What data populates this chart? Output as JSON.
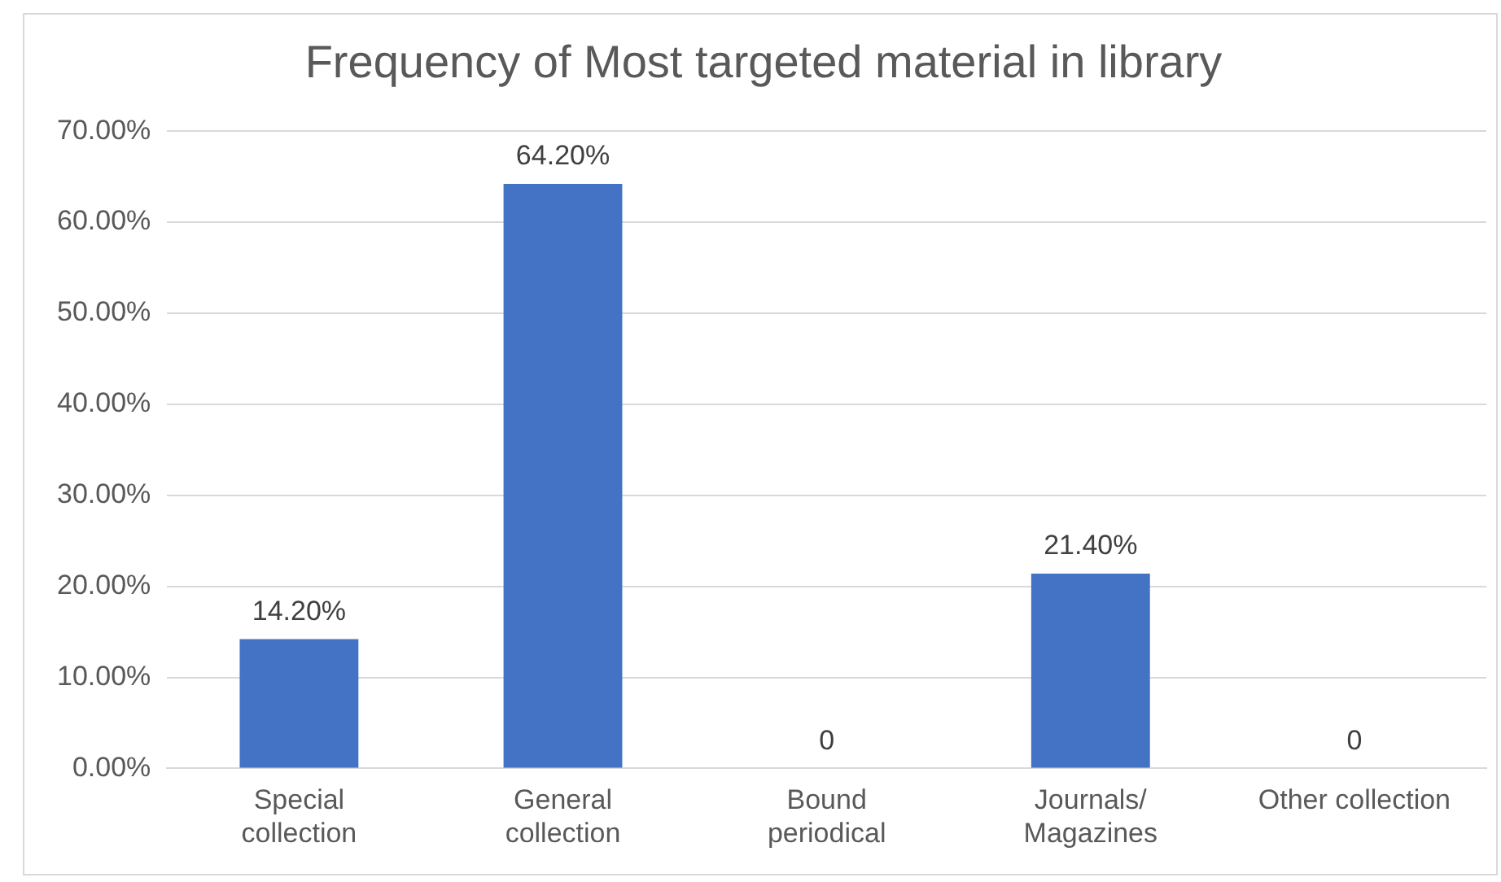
{
  "chart_data": {
    "type": "bar",
    "title": "Frequency of Most targeted material in library",
    "categories": [
      "Special\ncollection",
      "General\ncollection",
      "Bound\nperiodical",
      "Journals/\nMagazines",
      "Other collection"
    ],
    "values": [
      14.2,
      64.2,
      0,
      21.4,
      0
    ],
    "color": "#4472c4",
    "value_labels": [
      "14.20%",
      "64.20%",
      "0",
      "21.40%",
      "0"
    ],
    "ylim": [
      0,
      70
    ],
    "yticks": [
      {
        "value": 0,
        "label": "0.00%"
      },
      {
        "value": 10,
        "label": "10.00%"
      },
      {
        "value": 20,
        "label": "20.00%"
      },
      {
        "value": 30,
        "label": "30.00%"
      },
      {
        "value": 40,
        "label": "40.00%"
      },
      {
        "value": 50,
        "label": "50.00%"
      },
      {
        "value": 60,
        "label": "60.00%"
      },
      {
        "value": 70,
        "label": "70.00%"
      }
    ],
    "grid": "y",
    "legend": false
  }
}
